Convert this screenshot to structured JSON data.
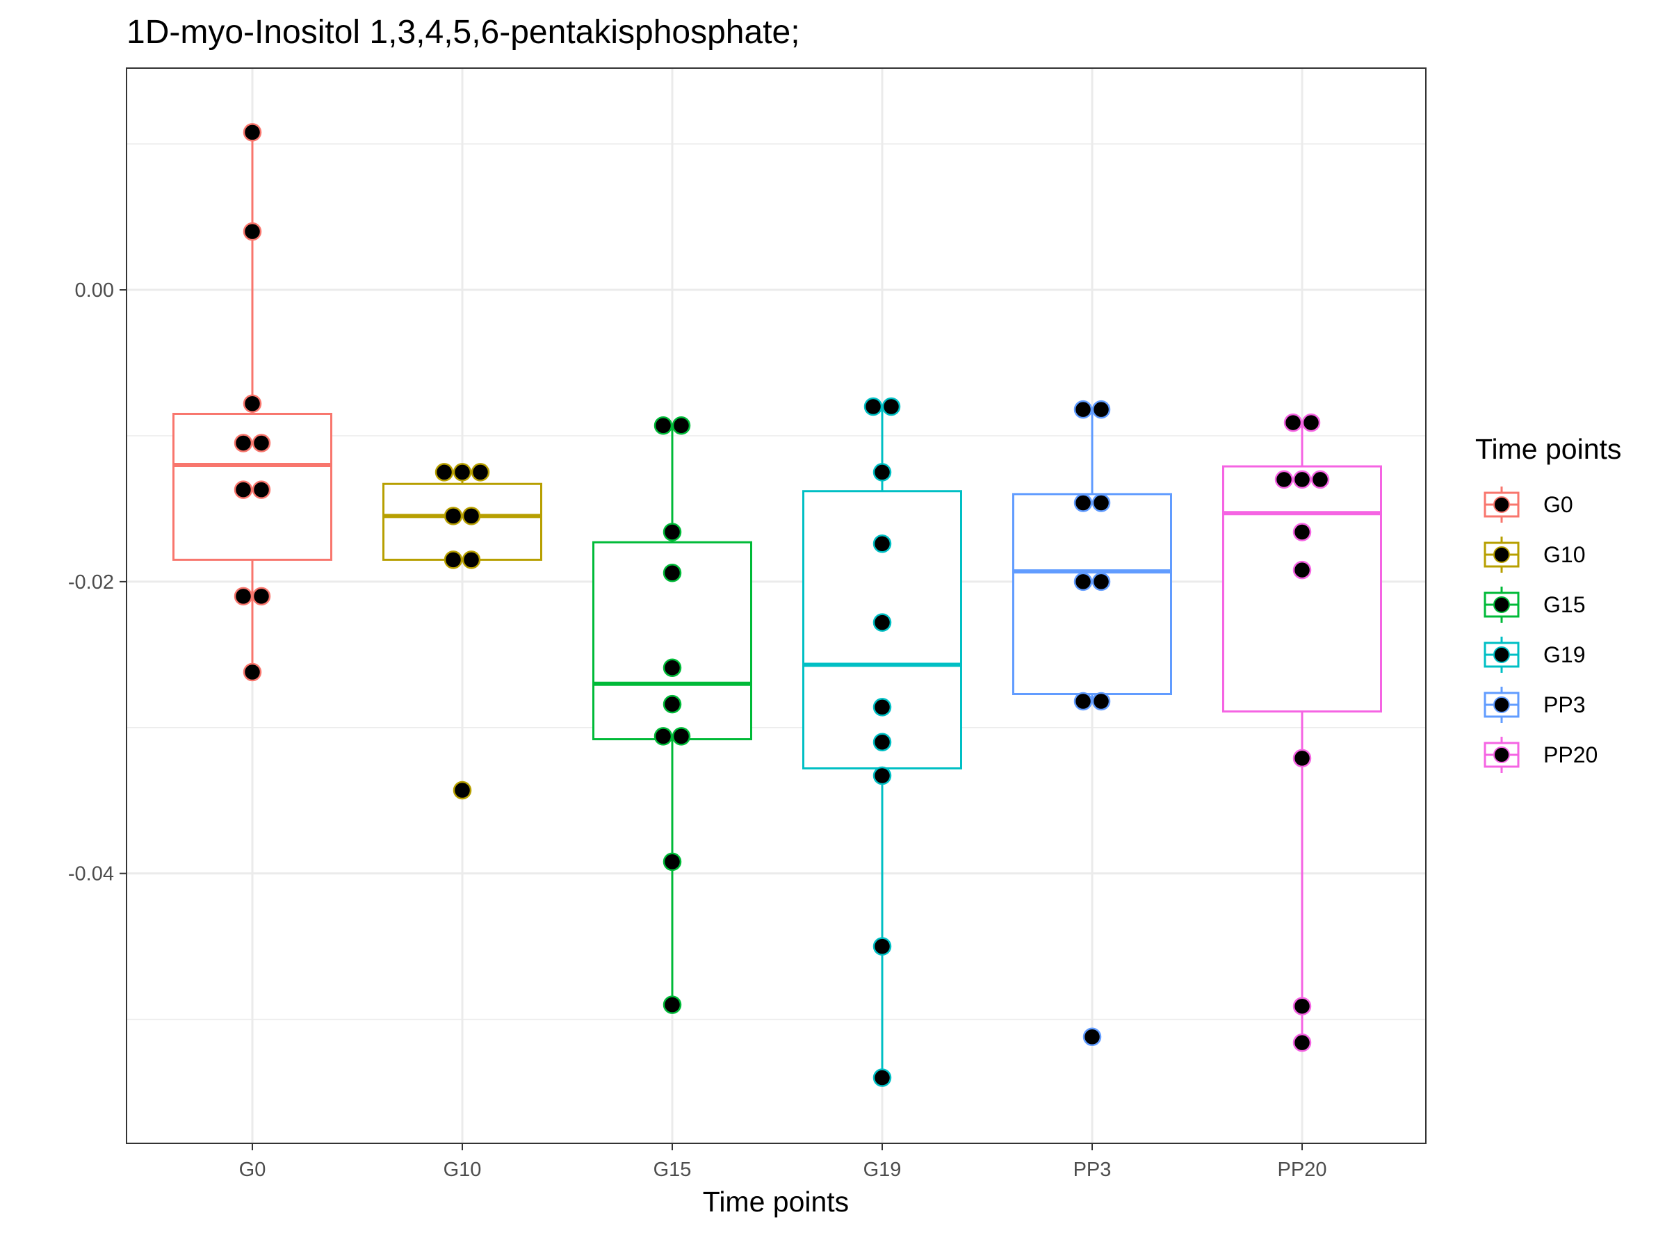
{
  "chart_data": {
    "type": "boxplot",
    "title": "1D-myo-Inositol 1,3,4,5,6-pentakisphosphate;",
    "xlabel": "Time points",
    "ylabel": "",
    "ylim": [
      -0.0585,
      0.0152
    ],
    "y_ticks": [
      0.0,
      -0.02,
      -0.04
    ],
    "y_tick_labels": [
      "0.00",
      "-0.02",
      "-0.04"
    ],
    "grid": true,
    "legend": {
      "title": "Time points",
      "position": "right"
    },
    "categories": [
      "G0",
      "G10",
      "G15",
      "G19",
      "PP3",
      "PP20"
    ],
    "colors": [
      "#F8766D",
      "#B79F00",
      "#00BA38",
      "#00BFC4",
      "#619CFF",
      "#F564E3"
    ],
    "point_fill": "#000000",
    "series": [
      {
        "name": "G0",
        "box": {
          "q1": -0.0185,
          "median": -0.012,
          "q3": -0.0085,
          "whisker_low": -0.0262,
          "whisker_high": 0.0108
        },
        "points": [
          0.0108,
          0.004,
          -0.0078,
          -0.0105,
          -0.0105,
          -0.0137,
          -0.0137,
          -0.021,
          -0.021,
          -0.0262
        ]
      },
      {
        "name": "G10",
        "box": {
          "q1": -0.0185,
          "median": -0.0155,
          "q3": -0.0133,
          "whisker_low": -0.0185,
          "whisker_high": -0.0125
        },
        "points": [
          -0.0125,
          -0.0125,
          -0.0125,
          -0.0155,
          -0.0155,
          -0.0185,
          -0.0185,
          -0.0343
        ]
      },
      {
        "name": "G15",
        "box": {
          "q1": -0.0308,
          "median": -0.027,
          "q3": -0.0173,
          "whisker_low": -0.049,
          "whisker_high": -0.0093
        },
        "points": [
          -0.0093,
          -0.0093,
          -0.0166,
          -0.0194,
          -0.0259,
          -0.0284,
          -0.0306,
          -0.0306,
          -0.0392,
          -0.049
        ]
      },
      {
        "name": "G19",
        "box": {
          "q1": -0.0328,
          "median": -0.0257,
          "q3": -0.0138,
          "whisker_low": -0.054,
          "whisker_high": -0.008
        },
        "points": [
          -0.008,
          -0.008,
          -0.0125,
          -0.0174,
          -0.0228,
          -0.0286,
          -0.031,
          -0.0333,
          -0.045,
          -0.054
        ]
      },
      {
        "name": "PP3",
        "box": {
          "q1": -0.0277,
          "median": -0.0193,
          "q3": -0.014,
          "whisker_low": -0.0282,
          "whisker_high": -0.0082
        },
        "points": [
          -0.0082,
          -0.0082,
          -0.0146,
          -0.0146,
          -0.02,
          -0.02,
          -0.0282,
          -0.0282,
          -0.0512
        ]
      },
      {
        "name": "PP20",
        "box": {
          "q1": -0.0289,
          "median": -0.0153,
          "q3": -0.0121,
          "whisker_low": -0.0516,
          "whisker_high": -0.0091
        },
        "points": [
          -0.0091,
          -0.0091,
          -0.013,
          -0.013,
          -0.013,
          -0.0166,
          -0.0192,
          -0.0321,
          -0.0491,
          -0.0516
        ]
      }
    ]
  }
}
